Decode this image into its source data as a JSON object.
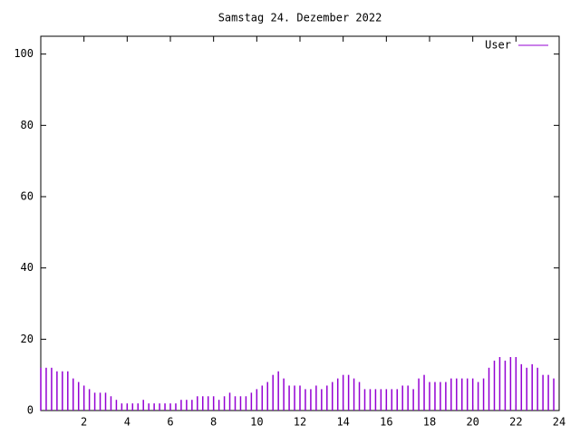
{
  "chart_data": {
    "type": "impulse",
    "title": "Samstag 24. Dezember 2022",
    "x": [
      0,
      0.25,
      0.5,
      0.75,
      1,
      1.25,
      1.5,
      1.75,
      2,
      2.25,
      2.5,
      2.75,
      3,
      3.25,
      3.5,
      3.75,
      4,
      4.25,
      4.5,
      4.75,
      5,
      5.25,
      5.5,
      5.75,
      6,
      6.25,
      6.5,
      6.75,
      7,
      7.25,
      7.5,
      7.75,
      8,
      8.25,
      8.5,
      8.75,
      9,
      9.25,
      9.5,
      9.75,
      10,
      10.25,
      10.5,
      10.75,
      11,
      11.25,
      11.5,
      11.75,
      12,
      12.25,
      12.5,
      12.75,
      13,
      13.25,
      13.5,
      13.75,
      14,
      14.25,
      14.5,
      14.75,
      15,
      15.25,
      15.5,
      15.75,
      16,
      16.25,
      16.5,
      16.75,
      17,
      17.25,
      17.5,
      17.75,
      18,
      18.25,
      18.5,
      18.75,
      19,
      19.25,
      19.5,
      19.75,
      20,
      20.25,
      20.5,
      20.75,
      21,
      21.25,
      21.5,
      21.75,
      22,
      22.25,
      22.5,
      22.75,
      23,
      23.25,
      23.5,
      23.75
    ],
    "series": [
      {
        "name": "User",
        "color": "#9400d3",
        "values": [
          12,
          12,
          12,
          11,
          11,
          11,
          9,
          8,
          7,
          6,
          5,
          5,
          5,
          4,
          3,
          2,
          2,
          2,
          2,
          3,
          2,
          2,
          2,
          2,
          2,
          2,
          3,
          3,
          3,
          4,
          4,
          4,
          4,
          3,
          4,
          5,
          4,
          4,
          4,
          5,
          6,
          7,
          8,
          10,
          11,
          9,
          7,
          7,
          7,
          6,
          6,
          7,
          6,
          7,
          8,
          9,
          10,
          10,
          9,
          8,
          6,
          6,
          6,
          6,
          6,
          6,
          6,
          7,
          7,
          6,
          9,
          10,
          8,
          8,
          8,
          8,
          9,
          9,
          9,
          9,
          9,
          8,
          9,
          12,
          14,
          15,
          14,
          15,
          15,
          13,
          12,
          13,
          12,
          10,
          10,
          9
        ]
      }
    ],
    "xlim": [
      0,
      24
    ],
    "xticks": [
      2,
      4,
      6,
      8,
      10,
      12,
      14,
      16,
      18,
      20,
      22,
      24
    ],
    "ylim": [
      0,
      105
    ],
    "yticks": [
      0,
      20,
      40,
      60,
      80,
      100
    ],
    "legend": "top-right"
  }
}
